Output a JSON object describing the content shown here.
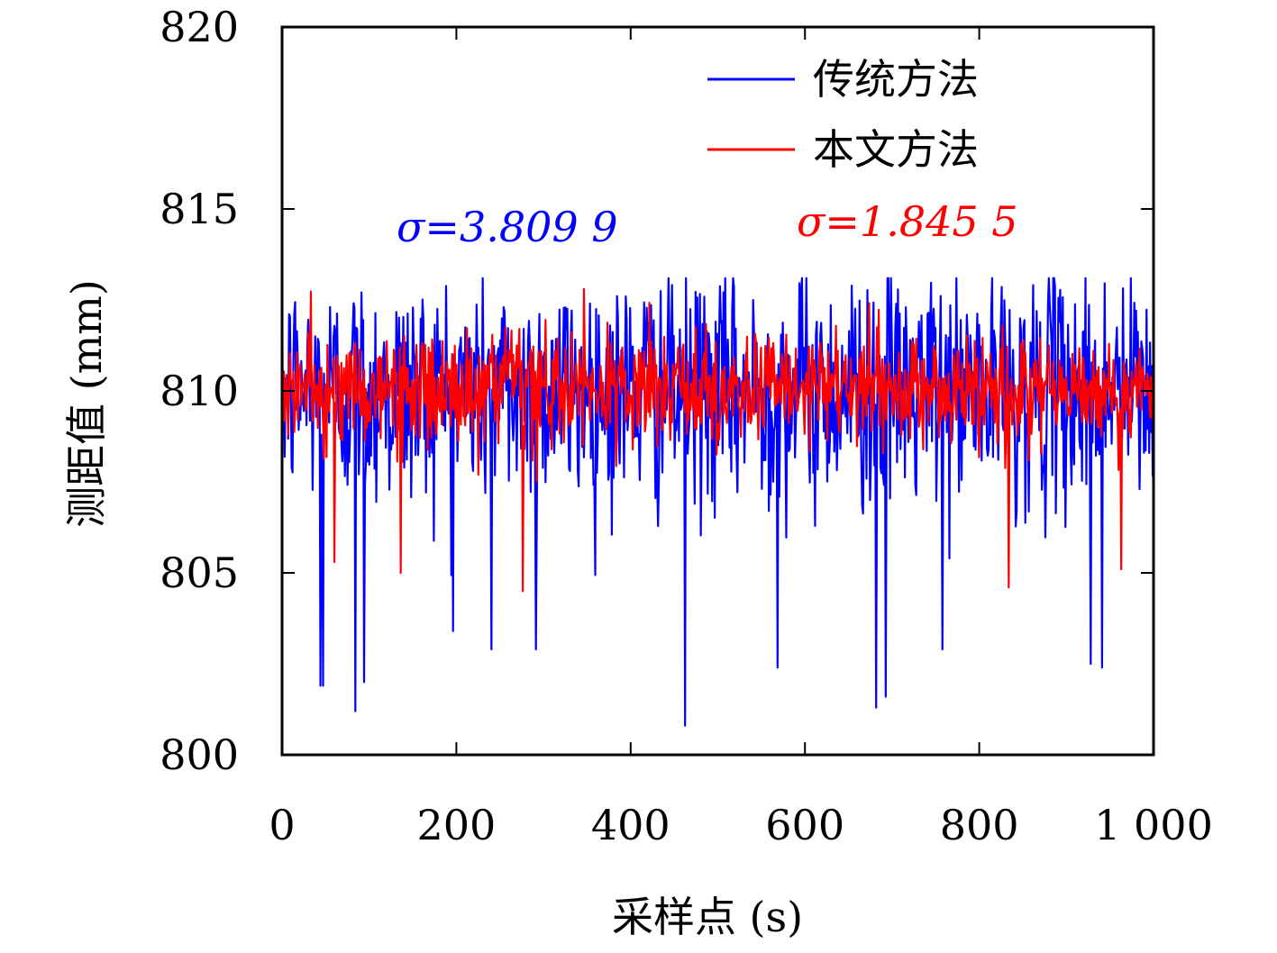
{
  "chart_data": {
    "type": "line",
    "xlabel": "采样点 (s)",
    "ylabel": "测距值 (mm)",
    "xlim": [
      0,
      1000
    ],
    "ylim": [
      800,
      820
    ],
    "x_ticks": [
      {
        "value": 0,
        "label": "0"
      },
      {
        "value": 200,
        "label": "200"
      },
      {
        "value": 400,
        "label": "400"
      },
      {
        "value": 600,
        "label": "600"
      },
      {
        "value": 800,
        "label": "800"
      },
      {
        "value": 1000,
        "label": "1 000"
      }
    ],
    "y_ticks": [
      {
        "value": 800,
        "label": "800"
      },
      {
        "value": 805,
        "label": "805"
      },
      {
        "value": 810,
        "label": "810"
      },
      {
        "value": 815,
        "label": "815"
      },
      {
        "value": 820,
        "label": "820"
      }
    ],
    "grid": false,
    "legend_position": "top-right",
    "series": [
      {
        "name": "传统方法",
        "color": "#0000ff",
        "mean": 810,
        "sigma": 3.8099,
        "min": 800.8,
        "max": 813.1,
        "n_points": 1000,
        "notable_minima": [
          {
            "x": 44,
            "y": 801.9
          },
          {
            "x": 47,
            "y": 801.9
          },
          {
            "x": 84,
            "y": 801.2
          },
          {
            "x": 94,
            "y": 802.0
          },
          {
            "x": 196,
            "y": 803.4
          },
          {
            "x": 240,
            "y": 802.9
          },
          {
            "x": 291,
            "y": 802.9
          },
          {
            "x": 462,
            "y": 800.8
          },
          {
            "x": 568,
            "y": 802.4
          },
          {
            "x": 681,
            "y": 801.3
          },
          {
            "x": 692,
            "y": 801.6
          },
          {
            "x": 757,
            "y": 802.9
          },
          {
            "x": 927,
            "y": 802.5
          },
          {
            "x": 940,
            "y": 802.4
          }
        ]
      },
      {
        "name": "本文方法",
        "color": "#ff0000",
        "mean": 810,
        "sigma": 1.8455,
        "min": 804.5,
        "max": 812.8,
        "n_points": 1000,
        "notable_minima": [
          {
            "x": 60,
            "y": 805.3
          },
          {
            "x": 136,
            "y": 805.0
          },
          {
            "x": 276,
            "y": 804.5
          },
          {
            "x": 833,
            "y": 804.6
          },
          {
            "x": 962,
            "y": 805.1
          }
        ]
      }
    ],
    "annotations": [
      {
        "text": "σ=3.809 9",
        "color": "#0000ff"
      },
      {
        "text": "σ=1.845 5",
        "color": "#ff0000"
      }
    ]
  }
}
